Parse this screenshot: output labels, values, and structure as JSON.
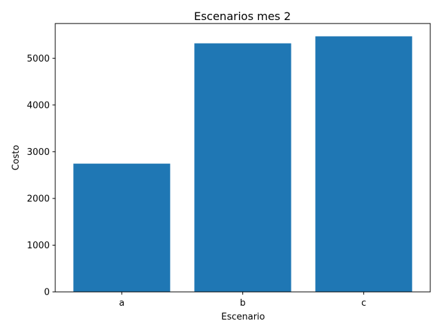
{
  "chart_data": {
    "type": "bar",
    "title": "Escenarios mes 2",
    "xlabel": "Escenario",
    "ylabel": "Costo",
    "categories": [
      "a",
      "b",
      "c"
    ],
    "values": [
      2745,
      5320,
      5470
    ],
    "ylim": [
      0,
      5744
    ],
    "yticks": [
      0,
      1000,
      2000,
      3000,
      4000,
      5000
    ],
    "grid": false,
    "colors": {
      "bar": "#1f77b4"
    }
  }
}
